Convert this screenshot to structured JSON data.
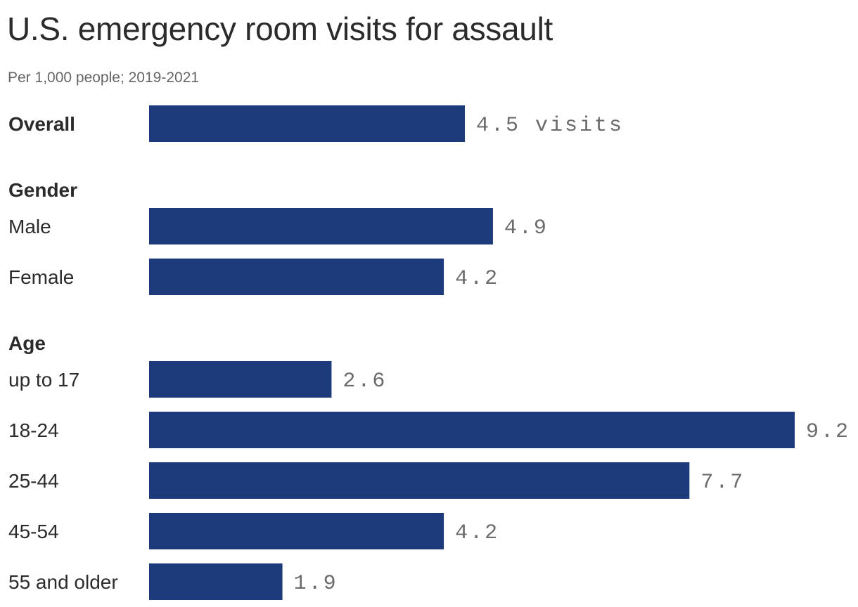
{
  "title": "U.S. emergency room visits for assault",
  "subtitle": "Per 1,000 people; 2019-2021",
  "chart_data": {
    "type": "bar",
    "orientation": "horizontal",
    "bar_color": "#1d3a7a",
    "xlim": [
      0,
      9.2
    ],
    "grid": false,
    "rows": [
      {
        "kind": "bar",
        "label": "Overall",
        "bold": true,
        "value": 4.5,
        "value_label": "4.5 visits"
      },
      {
        "kind": "header",
        "label": "Gender"
      },
      {
        "kind": "bar",
        "label": "Male",
        "value": 4.9,
        "value_label": "4.9"
      },
      {
        "kind": "bar",
        "label": "Female",
        "value": 4.2,
        "value_label": "4.2"
      },
      {
        "kind": "header",
        "label": "Age"
      },
      {
        "kind": "bar",
        "label": "up to 17",
        "value": 2.6,
        "value_label": "2.6"
      },
      {
        "kind": "bar",
        "label": "18-24",
        "value": 9.2,
        "value_label": "9.2"
      },
      {
        "kind": "bar",
        "label": "25-44",
        "value": 7.7,
        "value_label": "7.7"
      },
      {
        "kind": "bar",
        "label": "45-54",
        "value": 4.2,
        "value_label": "4.2"
      },
      {
        "kind": "bar",
        "label": "55 and older",
        "value": 1.9,
        "value_label": "1.9"
      }
    ]
  }
}
